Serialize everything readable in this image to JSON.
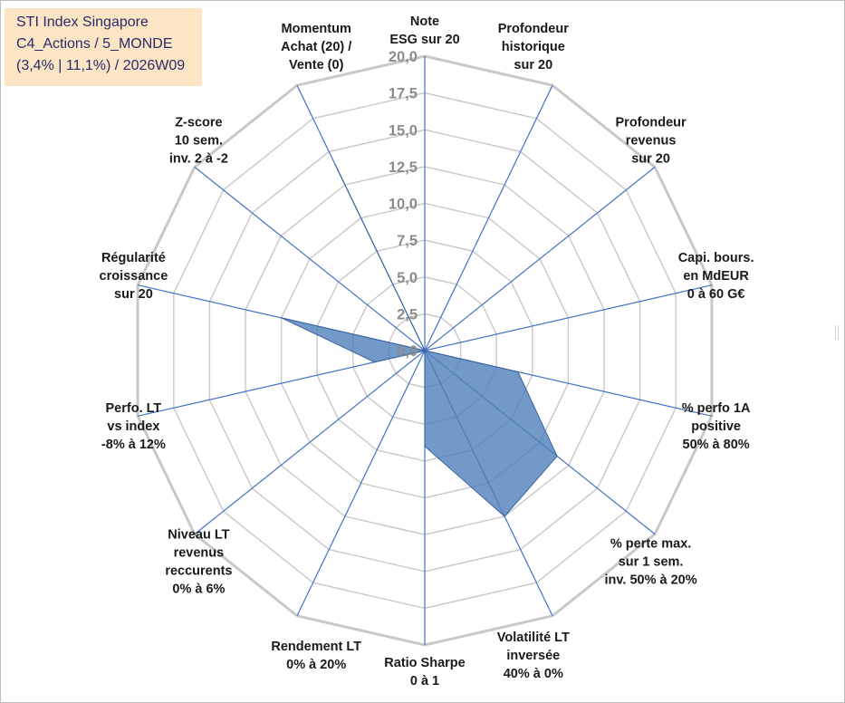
{
  "title_box": {
    "line1": "STI Index Singapore",
    "line2": "C4_Actions / 5_MONDE",
    "line3": "(3,4% | 11,1%) / 2026W09"
  },
  "colors": {
    "series_fill": "#4f7fba",
    "series_stroke": "#3a64a0",
    "grid": "#c8c8c8",
    "spokes": "#4472c4",
    "tick_text": "#8c8c8c",
    "title_bg": "#fbe5c4"
  },
  "chart_data": {
    "type": "radar",
    "rmax": 20,
    "tick_labels": [
      "0,0",
      "2,5",
      "5,0",
      "7,5",
      "10,0",
      "12,5",
      "15,0",
      "17,5",
      "20,0"
    ],
    "axes": [
      [
        "Note",
        "ESG sur 20"
      ],
      [
        "Profondeur",
        "historique",
        "sur 20"
      ],
      [
        "Profondeur",
        "revenus",
        "sur 20"
      ],
      [
        "Capi. bours.",
        "en MdEUR",
        "0 à 60 G€"
      ],
      [
        "% perfo 1A",
        "positive",
        "50% à 80%"
      ],
      [
        "% perte max.",
        "sur 1 sem.",
        "inv. 50% à 20%"
      ],
      [
        "Volatilité LT",
        "inversée",
        "40% à 0%"
      ],
      [
        "Ratio Sharpe",
        "0 à 1"
      ],
      [
        "Rendement LT",
        "0% à 20%"
      ],
      [
        "Niveau LT",
        "revenus",
        "reccurents",
        "0% à 6%"
      ],
      [
        "Perfo. LT",
        "vs index",
        "-8% à 12%"
      ],
      [
        "Régularité",
        "croissance",
        "sur 20"
      ],
      [
        "Z-score",
        "10 sem.",
        "inv. 2 à -2"
      ],
      [
        "Momentum",
        "Achat (20) /",
        "Vente (0)"
      ]
    ],
    "series": [
      {
        "values": [
          0,
          0,
          0,
          0,
          6.5,
          11.5,
          12.5,
          6.5,
          0,
          0,
          3.5,
          10,
          0,
          14
        ]
      }
    ],
    "grid": true,
    "legend": "none"
  }
}
